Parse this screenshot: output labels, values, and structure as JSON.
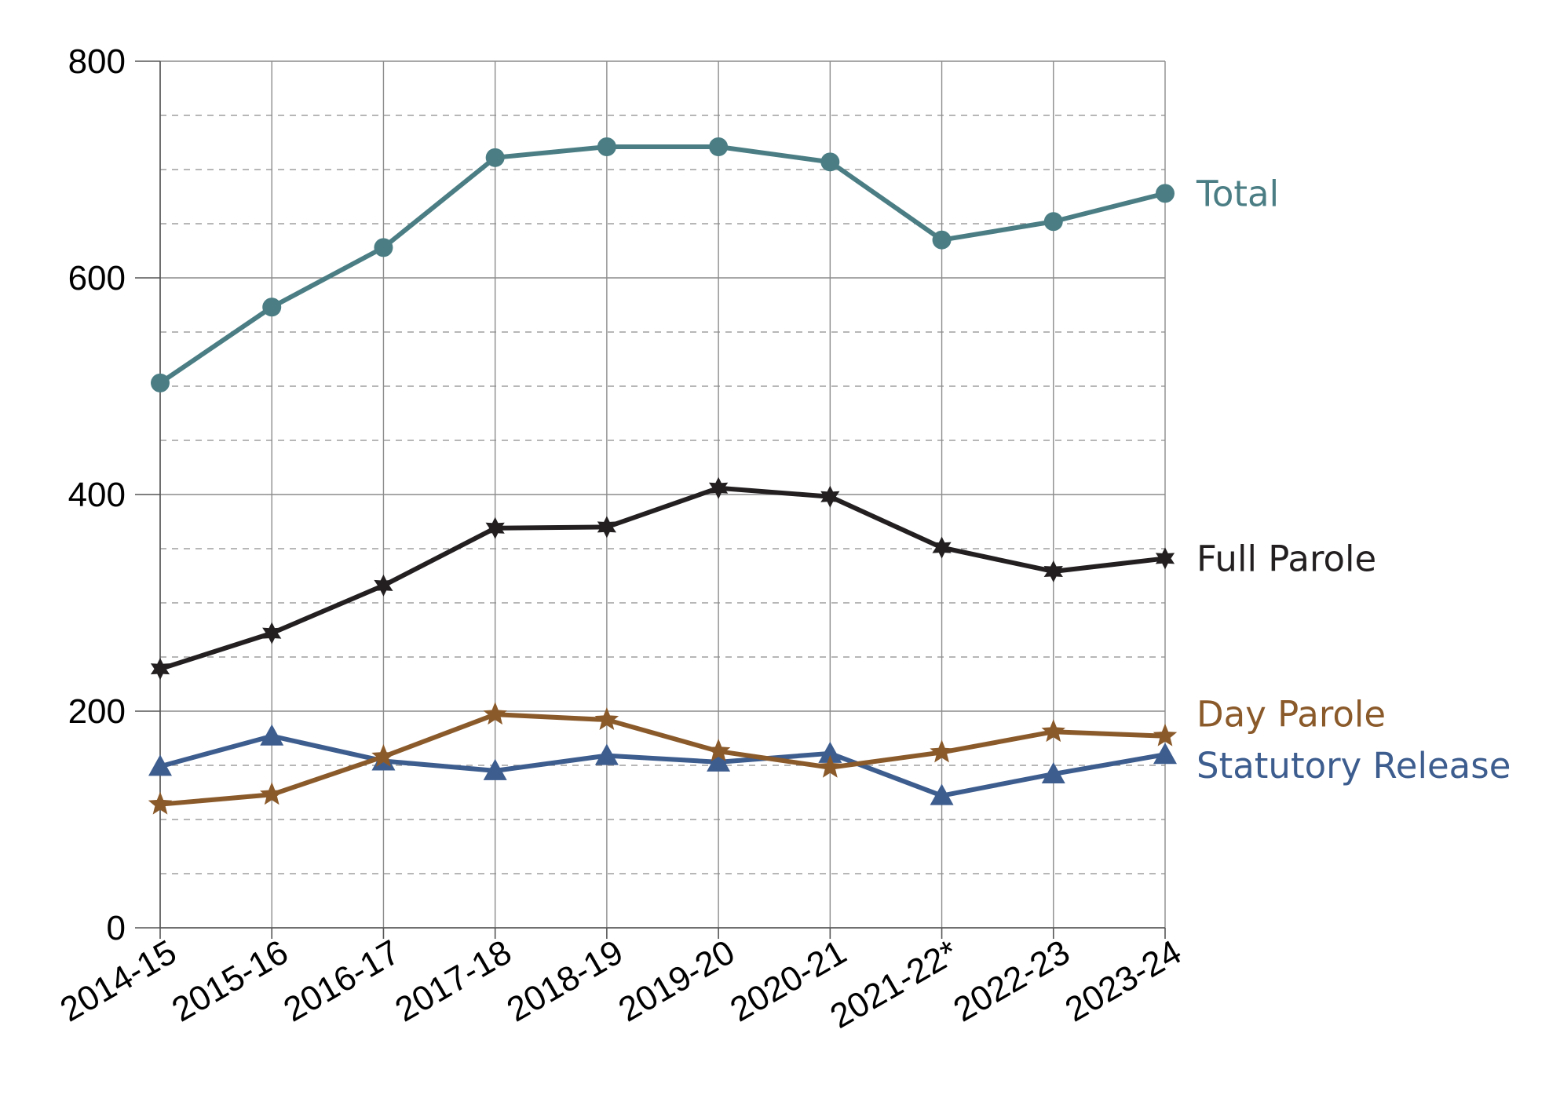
{
  "chart_data": {
    "type": "line",
    "title": "",
    "xlabel": "",
    "ylabel": "",
    "categories": [
      "2014-15",
      "2015-16",
      "2016-17",
      "2017-18",
      "2018-19",
      "2019-20",
      "2020-21",
      "2021-22*",
      "2022-23",
      "2023-24"
    ],
    "ylim": [
      0,
      800
    ],
    "yticks": [
      0,
      200,
      400,
      600,
      800
    ],
    "grid": true,
    "legend": "inline labels at right end of each line",
    "series": [
      {
        "name": "Total",
        "color": "#4A7E84",
        "marker": "circle",
        "values": [
          503,
          573,
          628,
          711,
          721,
          721,
          707,
          635,
          652,
          678
        ]
      },
      {
        "name": "Full Parole",
        "color": "#231F20",
        "marker": "star6",
        "values": [
          239,
          272,
          316,
          369,
          370,
          406,
          398,
          351,
          329,
          341
        ]
      },
      {
        "name": "Day Parole",
        "color": "#8B5A2B",
        "marker": "star5",
        "values": [
          114,
          123,
          158,
          197,
          192,
          163,
          148,
          162,
          181,
          177
        ]
      },
      {
        "name": "Statutory Release",
        "color": "#3D5D8F",
        "marker": "triangle",
        "values": [
          149,
          177,
          154,
          145,
          159,
          153,
          161,
          122,
          142,
          160
        ]
      }
    ]
  }
}
